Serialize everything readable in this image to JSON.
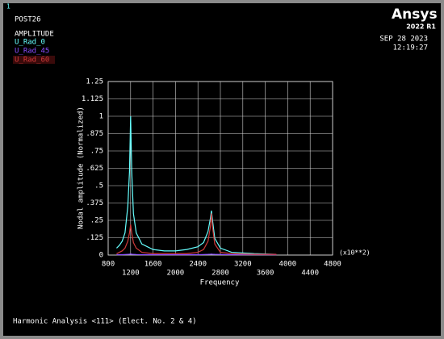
{
  "screen": {
    "window": "1",
    "brand": "Ansys",
    "version": "2022 R1",
    "date": "SEP 28 2023",
    "time": "12:19:27",
    "footer": "Harmonic Analysis <111> (Elect. No. 2 & 4)"
  },
  "chart_data": {
    "type": "line",
    "program": "POST26",
    "title": "AMPLITUDE",
    "x_label": "Frequency",
    "y_label": "Nodal amplitude (Normalized)",
    "x_multiplier": "(x10**2)",
    "x": [
      950,
      1000,
      1050,
      1100,
      1150,
      1180,
      1200,
      1220,
      1250,
      1300,
      1400,
      1600,
      1800,
      2000,
      2200,
      2400,
      2500,
      2580,
      2620,
      2640,
      2660,
      2700,
      2800,
      3000,
      3400,
      3800
    ],
    "series": [
      {
        "name": "U_Rad_0",
        "color": "#66ffff",
        "values": [
          0.05,
          0.07,
          0.1,
          0.16,
          0.35,
          0.6,
          1.0,
          0.6,
          0.3,
          0.16,
          0.08,
          0.04,
          0.03,
          0.03,
          0.04,
          0.06,
          0.09,
          0.17,
          0.26,
          0.32,
          0.25,
          0.12,
          0.05,
          0.02,
          0.01,
          0.005
        ]
      },
      {
        "name": "U_Rad_45",
        "color": "#8a4dff",
        "values": [
          0.003,
          0.003,
          0.003,
          0.004,
          0.005,
          0.006,
          0.008,
          0.006,
          0.005,
          0.004,
          0.003,
          0.003,
          0.003,
          0.003,
          0.003,
          0.003,
          0.004,
          0.005,
          0.006,
          0.007,
          0.006,
          0.005,
          0.004,
          0.003,
          0.003,
          0.003
        ]
      },
      {
        "name": "U_Rad_60",
        "color": "#d03a3a",
        "values": [
          0.01,
          0.02,
          0.03,
          0.05,
          0.1,
          0.16,
          0.22,
          0.16,
          0.09,
          0.05,
          0.02,
          0.01,
          0.01,
          0.01,
          0.01,
          0.02,
          0.04,
          0.1,
          0.2,
          0.3,
          0.2,
          0.08,
          0.02,
          0.01,
          0.005,
          0.005
        ]
      }
    ],
    "xlim": [
      800,
      4800
    ],
    "xticks": [
      800,
      1200,
      1600,
      2000,
      2400,
      2800,
      3200,
      3600,
      4000,
      4400,
      4800
    ],
    "ylim": [
      0,
      1.25
    ],
    "yticks": [
      0,
      {
        "value": 0.125,
        "label": ".125"
      },
      {
        "value": 0.25,
        "label": ".25"
      },
      {
        "value": 0.375,
        "label": ".375"
      },
      {
        "value": 0.5,
        "label": ".5"
      },
      {
        "value": 0.625,
        "label": ".625"
      },
      {
        "value": 0.75,
        "label": ".75"
      },
      {
        "value": 0.875,
        "label": ".875"
      },
      1,
      1.125,
      1.25
    ],
    "grid": true
  }
}
